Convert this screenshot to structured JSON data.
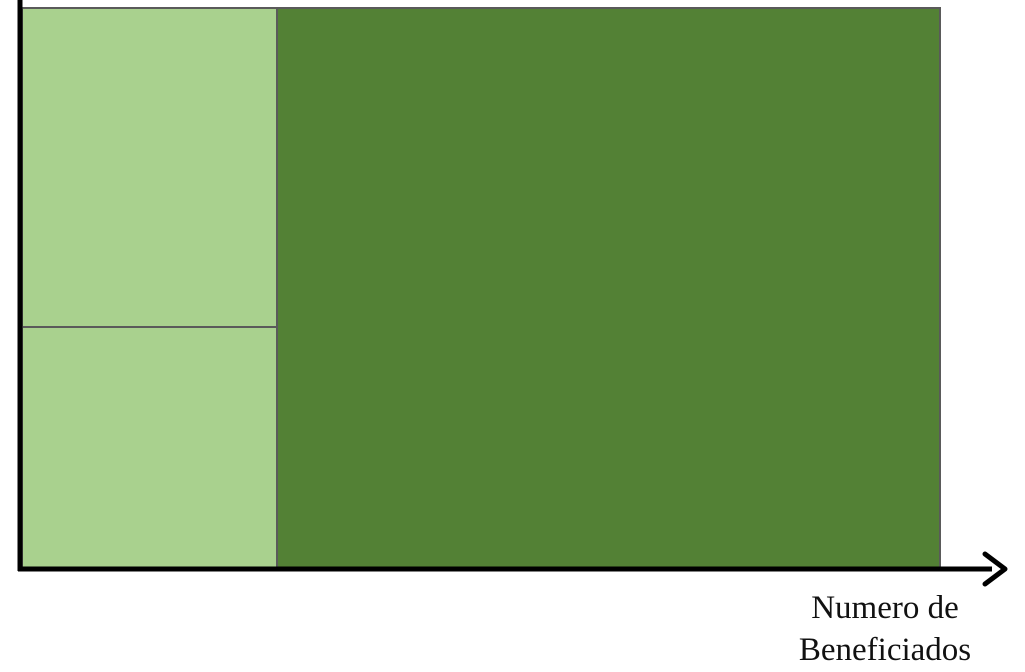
{
  "colors": {
    "light_green": "#a9d18e",
    "dark_green": "#538135",
    "axis": "#000000",
    "outline": "#5a5a5a"
  },
  "regions": [
    {
      "name": "left-upper-region",
      "fill": "light_green"
    },
    {
      "name": "left-lower-region",
      "fill": "light_green"
    },
    {
      "name": "right-region",
      "fill": "dark_green"
    }
  ],
  "x_axis": {
    "label_line_1": "Numero de",
    "label_line_2": "Beneficiados"
  }
}
